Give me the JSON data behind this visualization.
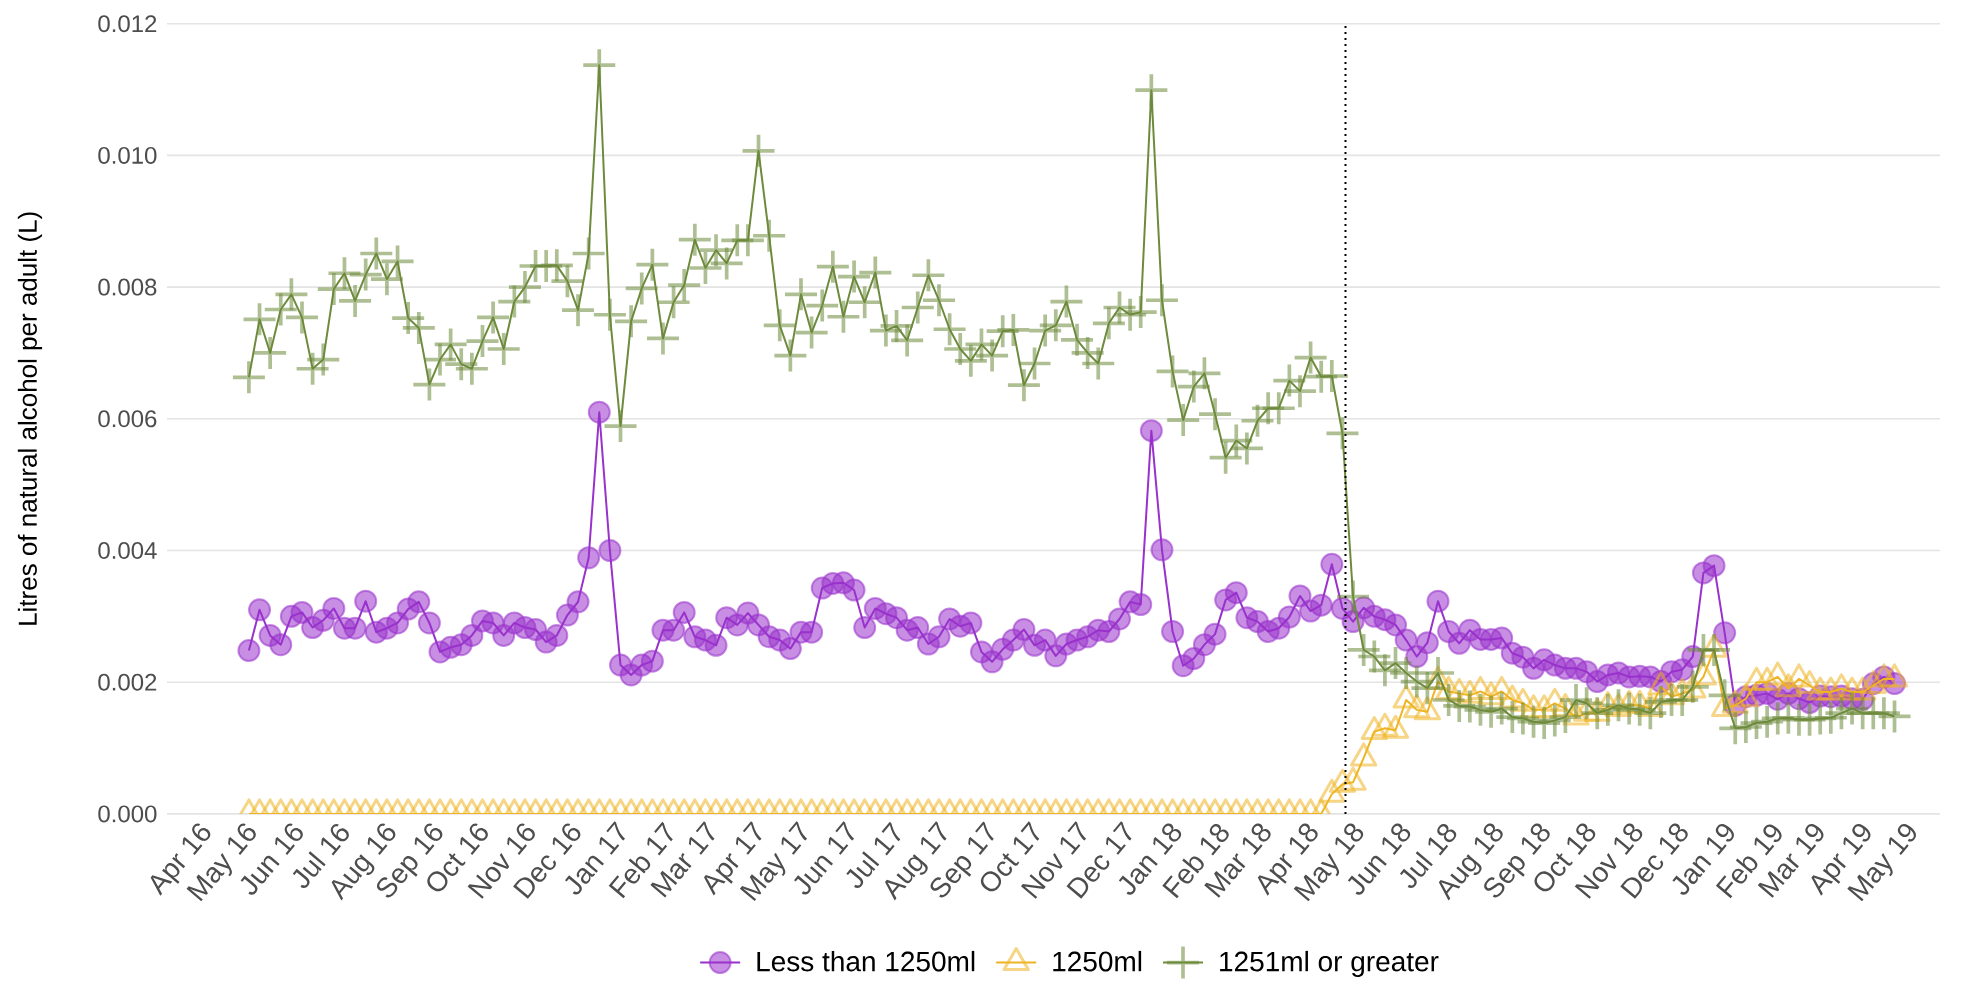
{
  "chart_data": {
    "type": "line",
    "ylabel": "Litres of natural alcohol per adult (L)",
    "x": [
      "2016-05-08",
      "2016-05-15",
      "2016-05-22",
      "2016-05-29",
      "2016-06-05",
      "2016-06-12",
      "2016-06-19",
      "2016-06-26",
      "2016-07-03",
      "2016-07-10",
      "2016-07-17",
      "2016-07-24",
      "2016-07-31",
      "2016-08-07",
      "2016-08-14",
      "2016-08-21",
      "2016-08-28",
      "2016-09-04",
      "2016-09-11",
      "2016-09-18",
      "2016-09-25",
      "2016-10-02",
      "2016-10-09",
      "2016-10-16",
      "2016-10-23",
      "2016-10-30",
      "2016-11-06",
      "2016-11-13",
      "2016-11-20",
      "2016-11-27",
      "2016-12-04",
      "2016-12-11",
      "2016-12-18",
      "2016-12-25",
      "2017-01-01",
      "2017-01-08",
      "2017-01-15",
      "2017-01-22",
      "2017-01-29",
      "2017-02-05",
      "2017-02-12",
      "2017-02-19",
      "2017-02-26",
      "2017-03-05",
      "2017-03-12",
      "2017-03-19",
      "2017-03-26",
      "2017-04-02",
      "2017-04-09",
      "2017-04-16",
      "2017-04-23",
      "2017-04-30",
      "2017-05-07",
      "2017-05-14",
      "2017-05-21",
      "2017-05-28",
      "2017-06-04",
      "2017-06-11",
      "2017-06-18",
      "2017-06-25",
      "2017-07-02",
      "2017-07-09",
      "2017-07-16",
      "2017-07-23",
      "2017-07-30",
      "2017-08-06",
      "2017-08-13",
      "2017-08-20",
      "2017-08-27",
      "2017-09-03",
      "2017-09-10",
      "2017-09-17",
      "2017-09-24",
      "2017-10-01",
      "2017-10-08",
      "2017-10-15",
      "2017-10-22",
      "2017-10-29",
      "2017-11-05",
      "2017-11-12",
      "2017-11-19",
      "2017-11-26",
      "2017-12-03",
      "2017-12-10",
      "2017-12-17",
      "2017-12-24",
      "2017-12-31",
      "2018-01-07",
      "2018-01-14",
      "2018-01-21",
      "2018-01-28",
      "2018-02-04",
      "2018-02-11",
      "2018-02-18",
      "2018-02-25",
      "2018-03-04",
      "2018-03-11",
      "2018-03-18",
      "2018-03-25",
      "2018-04-01",
      "2018-04-08",
      "2018-04-15",
      "2018-04-22",
      "2018-04-29",
      "2018-05-06",
      "2018-05-13",
      "2018-05-20",
      "2018-05-27",
      "2018-06-03",
      "2018-06-10",
      "2018-06-17",
      "2018-06-24",
      "2018-07-01",
      "2018-07-08",
      "2018-07-15",
      "2018-07-22",
      "2018-07-29",
      "2018-08-05",
      "2018-08-12",
      "2018-08-19",
      "2018-08-26",
      "2018-09-02",
      "2018-09-09",
      "2018-09-16",
      "2018-09-23",
      "2018-09-30",
      "2018-10-07",
      "2018-10-14",
      "2018-10-21",
      "2018-10-28",
      "2018-11-04",
      "2018-11-11",
      "2018-11-18",
      "2018-11-25",
      "2018-12-02",
      "2018-12-09",
      "2018-12-16",
      "2018-12-23",
      "2018-12-30",
      "2019-01-06",
      "2019-01-13",
      "2019-01-20",
      "2019-01-27",
      "2019-02-03",
      "2019-02-10",
      "2019-02-17",
      "2019-02-24",
      "2019-03-03",
      "2019-03-10",
      "2019-03-17",
      "2019-03-24",
      "2019-03-31",
      "2019-04-07",
      "2019-04-14",
      "2019-04-21",
      "2019-04-28"
    ],
    "xlim": [
      "2016-03-15",
      "2019-05-28"
    ],
    "ylim": [
      0,
      0.012
    ],
    "xticks": [
      {
        "value": "2016-04-01",
        "label": "Apr 16"
      },
      {
        "value": "2016-05-01",
        "label": "May 16"
      },
      {
        "value": "2016-06-01",
        "label": "Jun 16"
      },
      {
        "value": "2016-07-01",
        "label": "Jul 16"
      },
      {
        "value": "2016-08-01",
        "label": "Aug 16"
      },
      {
        "value": "2016-09-01",
        "label": "Sep 16"
      },
      {
        "value": "2016-10-01",
        "label": "Oct 16"
      },
      {
        "value": "2016-11-01",
        "label": "Nov 16"
      },
      {
        "value": "2016-12-01",
        "label": "Dec 16"
      },
      {
        "value": "2017-01-01",
        "label": "Jan 17"
      },
      {
        "value": "2017-02-01",
        "label": "Feb 17"
      },
      {
        "value": "2017-03-01",
        "label": "Mar 17"
      },
      {
        "value": "2017-04-01",
        "label": "Apr 17"
      },
      {
        "value": "2017-05-01",
        "label": "May 17"
      },
      {
        "value": "2017-06-01",
        "label": "Jun 17"
      },
      {
        "value": "2017-07-01",
        "label": "Jul 17"
      },
      {
        "value": "2017-08-01",
        "label": "Aug 17"
      },
      {
        "value": "2017-09-01",
        "label": "Sep 17"
      },
      {
        "value": "2017-10-01",
        "label": "Oct 17"
      },
      {
        "value": "2017-11-01",
        "label": "Nov 17"
      },
      {
        "value": "2017-12-01",
        "label": "Dec 17"
      },
      {
        "value": "2018-01-01",
        "label": "Jan 18"
      },
      {
        "value": "2018-02-01",
        "label": "Feb 18"
      },
      {
        "value": "2018-03-01",
        "label": "Mar 18"
      },
      {
        "value": "2018-04-01",
        "label": "Apr 18"
      },
      {
        "value": "2018-05-01",
        "label": "May 18"
      },
      {
        "value": "2018-06-01",
        "label": "Jun 18"
      },
      {
        "value": "2018-07-01",
        "label": "Jul 18"
      },
      {
        "value": "2018-08-01",
        "label": "Aug 18"
      },
      {
        "value": "2018-09-01",
        "label": "Sep 18"
      },
      {
        "value": "2018-10-01",
        "label": "Oct 18"
      },
      {
        "value": "2018-11-01",
        "label": "Nov 18"
      },
      {
        "value": "2018-12-01",
        "label": "Dec 18"
      },
      {
        "value": "2019-01-01",
        "label": "Jan 19"
      },
      {
        "value": "2019-02-01",
        "label": "Feb 19"
      },
      {
        "value": "2019-03-01",
        "label": "Mar 19"
      },
      {
        "value": "2019-04-01",
        "label": "Apr 19"
      },
      {
        "value": "2019-05-01",
        "label": "May 19"
      }
    ],
    "yticks": [
      {
        "value": 0,
        "label": "0.000"
      },
      {
        "value": 0.002,
        "label": "0.002"
      },
      {
        "value": 0.004,
        "label": "0.004"
      },
      {
        "value": 0.006,
        "label": "0.006"
      },
      {
        "value": 0.008,
        "label": "0.008"
      },
      {
        "value": 0.01,
        "label": "0.010"
      },
      {
        "value": 0.012,
        "label": "0.012"
      }
    ],
    "grid": "y",
    "legend": "bottom",
    "series": [
      {
        "name": "Less than 1250ml",
        "color": "#9932cc",
        "marker": "circle",
        "values": [
          0.00248,
          0.0031,
          0.00271,
          0.00257,
          0.003,
          0.00306,
          0.00283,
          0.00294,
          0.00312,
          0.00282,
          0.00282,
          0.00323,
          0.00276,
          0.00282,
          0.0029,
          0.00311,
          0.00322,
          0.0029,
          0.00246,
          0.00253,
          0.00257,
          0.00271,
          0.00293,
          0.0029,
          0.00271,
          0.0029,
          0.00283,
          0.0028,
          0.00261,
          0.00271,
          0.00302,
          0.00322,
          0.00389,
          0.0061,
          0.004,
          0.00226,
          0.00211,
          0.00226,
          0.00232,
          0.00279,
          0.00279,
          0.00306,
          0.00269,
          0.00264,
          0.00256,
          0.00298,
          0.00287,
          0.00305,
          0.00287,
          0.00269,
          0.00264,
          0.00251,
          0.00276,
          0.00276,
          0.00343,
          0.0035,
          0.00351,
          0.0034,
          0.00283,
          0.00312,
          0.00304,
          0.00298,
          0.00279,
          0.00283,
          0.00258,
          0.00269,
          0.00296,
          0.00285,
          0.0029,
          0.00246,
          0.00231,
          0.0025,
          0.00264,
          0.0028,
          0.00256,
          0.00264,
          0.0024,
          0.00258,
          0.00264,
          0.00269,
          0.00279,
          0.00277,
          0.00296,
          0.00322,
          0.00318,
          0.00582,
          0.00401,
          0.00277,
          0.00225,
          0.00236,
          0.00257,
          0.00273,
          0.00325,
          0.00336,
          0.00298,
          0.00292,
          0.00277,
          0.00282,
          0.00299,
          0.00331,
          0.00308,
          0.00317,
          0.00379,
          0.00312,
          0.00292,
          0.00313,
          0.003,
          0.00295,
          0.00287,
          0.00264,
          0.00239,
          0.0026,
          0.00323,
          0.00277,
          0.00259,
          0.00279,
          0.00265,
          0.00265,
          0.00267,
          0.00244,
          0.00238,
          0.00221,
          0.00234,
          0.00226,
          0.00221,
          0.00221,
          0.00216,
          0.00201,
          0.00211,
          0.00214,
          0.00208,
          0.00209,
          0.00208,
          0.00201,
          0.00216,
          0.00219,
          0.00239,
          0.00366,
          0.00377,
          0.00275,
          0.00165,
          0.00178,
          0.0018,
          0.00183,
          0.00174,
          0.00183,
          0.00175,
          0.00169,
          0.00179,
          0.00178,
          0.00179,
          0.00175,
          0.00174,
          0.00198,
          0.00208,
          0.00198
        ]
      },
      {
        "name": "1250ml",
        "color": "#eeb422",
        "marker": "triangle",
        "values": [
          0,
          0,
          0,
          0,
          0,
          0,
          0,
          0,
          0,
          0,
          0,
          0,
          0,
          0,
          0,
          0,
          0,
          0,
          0,
          0,
          0,
          0,
          0,
          0,
          0,
          0,
          0,
          0,
          0,
          0,
          0,
          0,
          0,
          0,
          0,
          0,
          0,
          0,
          0,
          0,
          0,
          0,
          0,
          0,
          0,
          0,
          0,
          0,
          0,
          0,
          0,
          0,
          0,
          0,
          0,
          0,
          0,
          0,
          0,
          0,
          0,
          0,
          0,
          0,
          0,
          0,
          0,
          0,
          0,
          0,
          0,
          0,
          0,
          0,
          0,
          0,
          0,
          0,
          0,
          0,
          0,
          0,
          0,
          0,
          0,
          0,
          0,
          0,
          0,
          0,
          0,
          0,
          0,
          0,
          0,
          0,
          0,
          0,
          0,
          0,
          0,
          0,
          0.0003,
          0.00045,
          0.00048,
          0.00085,
          0.00125,
          0.0013,
          0.00127,
          0.00173,
          0.00158,
          0.00155,
          0.00201,
          0.00186,
          0.00183,
          0.0018,
          0.00186,
          0.00178,
          0.00186,
          0.00173,
          0.00168,
          0.00158,
          0.00158,
          0.00168,
          0.0016,
          0.00147,
          0.00153,
          0.00153,
          0.00163,
          0.0016,
          0.00165,
          0.00165,
          0.0016,
          0.00193,
          0.00178,
          0.00183,
          0.00188,
          0.00208,
          0.0025,
          0.0016,
          0.00165,
          0.00175,
          0.002,
          0.002,
          0.00208,
          0.0019,
          0.00205,
          0.00195,
          0.00185,
          0.00185,
          0.0019,
          0.00185,
          0.00185,
          0.00195,
          0.00205,
          0.00205
        ]
      },
      {
        "name": "1251ml or greater",
        "color": "#6e8b3d",
        "marker": "cross",
        "values": [
          0.00663,
          0.00751,
          0.007,
          0.00766,
          0.00789,
          0.00754,
          0.00676,
          0.0069,
          0.00797,
          0.00821,
          0.00779,
          0.00819,
          0.00851,
          0.00812,
          0.00839,
          0.00753,
          0.00738,
          0.00652,
          0.0069,
          0.00713,
          0.00683,
          0.00676,
          0.00718,
          0.00754,
          0.00706,
          0.00778,
          0.008,
          0.00832,
          0.00832,
          0.00833,
          0.00809,
          0.00765,
          0.00851,
          0.01137,
          0.00758,
          0.00589,
          0.00748,
          0.00798,
          0.00834,
          0.00722,
          0.00777,
          0.00803,
          0.00872,
          0.00829,
          0.00856,
          0.00836,
          0.00871,
          0.00871,
          0.01007,
          0.00878,
          0.00742,
          0.00696,
          0.00789,
          0.00731,
          0.00772,
          0.00831,
          0.00755,
          0.00816,
          0.00777,
          0.00822,
          0.00734,
          0.00741,
          0.00719,
          0.00769,
          0.00818,
          0.0078,
          0.00736,
          0.00706,
          0.00688,
          0.00713,
          0.00696,
          0.00733,
          0.00735,
          0.00651,
          0.00684,
          0.00734,
          0.00742,
          0.00778,
          0.0072,
          0.007,
          0.00684,
          0.00745,
          0.00769,
          0.00758,
          0.00762,
          0.01099,
          0.0078,
          0.00672,
          0.00598,
          0.00649,
          0.00669,
          0.00607,
          0.00541,
          0.00567,
          0.00555,
          0.00597,
          0.00616,
          0.00616,
          0.00658,
          0.00642,
          0.00693,
          0.00664,
          0.00665,
          0.00578,
          0.0033,
          0.00249,
          0.00239,
          0.00218,
          0.00229,
          0.00214,
          0.00201,
          0.00191,
          0.00214,
          0.00173,
          0.00164,
          0.00163,
          0.00158,
          0.00155,
          0.0016,
          0.00147,
          0.00145,
          0.0014,
          0.00138,
          0.00142,
          0.00147,
          0.00173,
          0.00168,
          0.00153,
          0.00158,
          0.00165,
          0.0016,
          0.00158,
          0.00153,
          0.0017,
          0.00173,
          0.00173,
          0.00193,
          0.00249,
          0.00249,
          0.0018,
          0.0013,
          0.00132,
          0.00138,
          0.0014,
          0.00145,
          0.00146,
          0.00143,
          0.00143,
          0.00145,
          0.00146,
          0.00153,
          0.0016,
          0.00153,
          0.00153,
          0.00153,
          0.00148
        ]
      }
    ],
    "ref_lines": [
      {
        "axis": "x",
        "value": "2018-05-01",
        "line_style": "dotted",
        "color": "#000000"
      }
    ]
  }
}
